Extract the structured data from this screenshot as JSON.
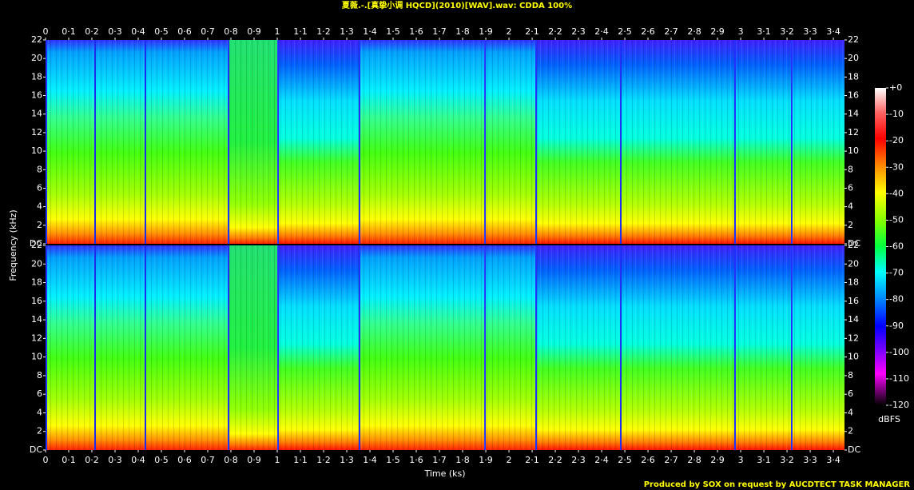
{
  "chart_data": {
    "type": "spectrogram",
    "title": "夏薇.-.[真挚小调 HQCD](2010)[WAV].wav: CDDA 100%",
    "xlabel": "Time (ks)",
    "ylabel": "Frequency (kHz)",
    "xlim": [
      0,
      3.448
    ],
    "xticks": [
      0,
      {
        "value": 0.1,
        "label": "0·1"
      },
      {
        "value": 0.2,
        "label": "0·2"
      },
      {
        "value": 0.3,
        "label": "0·3"
      },
      {
        "value": 0.4,
        "label": "0·4"
      },
      {
        "value": 0.5,
        "label": "0·5"
      },
      {
        "value": 0.6,
        "label": "0·6"
      },
      {
        "value": 0.7,
        "label": "0·7"
      },
      {
        "value": 0.8,
        "label": "0·8"
      },
      {
        "value": 0.9,
        "label": "0·9"
      },
      1,
      {
        "value": 1.1,
        "label": "1·1"
      },
      {
        "value": 1.2,
        "label": "1·2"
      },
      {
        "value": 1.3,
        "label": "1·3"
      },
      {
        "value": 1.4,
        "label": "1·4"
      },
      {
        "value": 1.5,
        "label": "1·5"
      },
      {
        "value": 1.6,
        "label": "1·6"
      },
      {
        "value": 1.7,
        "label": "1·7"
      },
      {
        "value": 1.8,
        "label": "1·8"
      },
      {
        "value": 1.9,
        "label": "1·9"
      },
      2,
      {
        "value": 2.1,
        "label": "2·1"
      },
      {
        "value": 2.2,
        "label": "2·2"
      },
      {
        "value": 2.3,
        "label": "2·3"
      },
      {
        "value": 2.4,
        "label": "2·4"
      },
      {
        "value": 2.5,
        "label": "2·5"
      },
      {
        "value": 2.6,
        "label": "2·6"
      },
      {
        "value": 2.7,
        "label": "2·7"
      },
      {
        "value": 2.8,
        "label": "2·8"
      },
      {
        "value": 2.9,
        "label": "2·9"
      },
      3,
      {
        "value": 3.1,
        "label": "3·1"
      },
      {
        "value": 3.2,
        "label": "3·2"
      },
      {
        "value": 3.3,
        "label": "3·3"
      },
      {
        "value": 3.4,
        "label": "3·4"
      }
    ],
    "ylim": [
      0,
      22
    ],
    "yticks": [
      {
        "value": 0,
        "label": "DC"
      },
      2,
      4,
      6,
      8,
      10,
      12,
      14,
      16,
      18,
      20,
      22
    ],
    "colorbar": {
      "label": "dBFS",
      "lim": [
        -120,
        0
      ],
      "ticks": [
        {
          "value": 0,
          "label": "+0"
        },
        -10,
        -20,
        -30,
        -40,
        -50,
        -60,
        -70,
        -80,
        -90,
        -100,
        -110,
        -120
      ]
    }
  },
  "footer": "Produced by SOX on request by AUCDTECT TASK MANAGER"
}
